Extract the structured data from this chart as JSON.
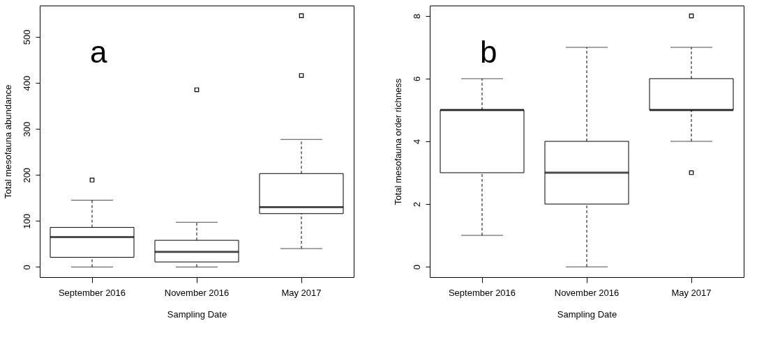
{
  "chart_data": [
    {
      "type": "box",
      "xlabel": "Sampling Date",
      "ylabel": "Total mesofauna abundance",
      "annotations": [
        "a"
      ],
      "categories": [
        "September 2016",
        "November 2016",
        "May 2017"
      ],
      "ylim": [
        -22,
        568
      ],
      "yticks": [
        0,
        100,
        200,
        300,
        400,
        500
      ],
      "grid": false,
      "boxes": [
        {
          "low": 0,
          "q1": 21,
          "median": 65,
          "q3": 86,
          "high": 145,
          "outliers": [
            189
          ]
        },
        {
          "low": 0,
          "q1": 11,
          "median": 33,
          "q3": 58,
          "high": 97,
          "outliers": [
            385
          ]
        },
        {
          "low": 40,
          "q1": 116,
          "median": 130,
          "q3": 203,
          "high": 277,
          "outliers": [
            416,
            546
          ]
        }
      ]
    },
    {
      "type": "box",
      "xlabel": "Sampling Date",
      "ylabel": "Total mesofauna order richness",
      "annotations": [
        "b"
      ],
      "categories": [
        "September 2016",
        "November 2016",
        "May 2017"
      ],
      "ylim": [
        -0.33,
        8.33
      ],
      "yticks": [
        0,
        2,
        4,
        6,
        8
      ],
      "grid": false,
      "boxes": [
        {
          "low": 1,
          "q1": 3,
          "median": 5,
          "q3": 5,
          "high": 6
        },
        {
          "low": 0,
          "q1": 2,
          "median": 3,
          "q3": 4,
          "high": 7
        },
        {
          "low": 4,
          "q1": 5,
          "median": 5,
          "q3": 6,
          "high": 7,
          "outliers": [
            3,
            8
          ]
        }
      ]
    }
  ]
}
